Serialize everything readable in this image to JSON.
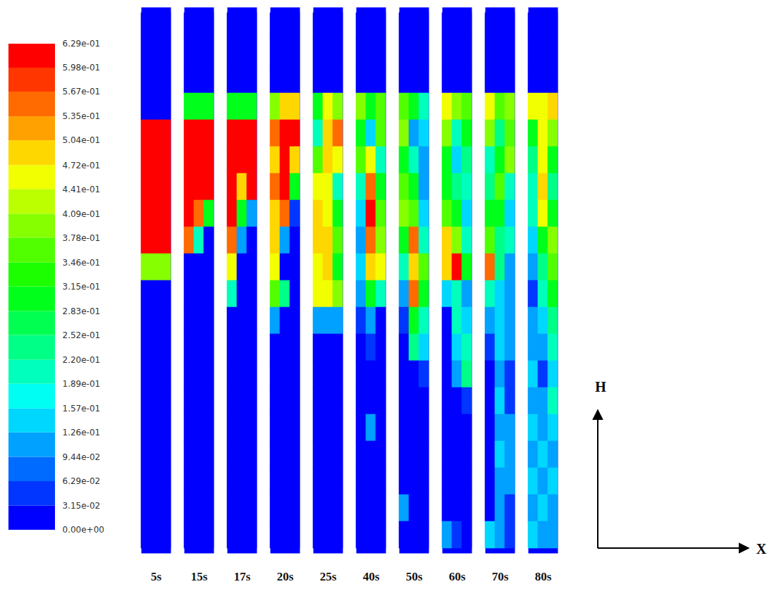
{
  "chart_data": {
    "type": "heatmap",
    "axis_labels": {
      "vertical": "H",
      "horizontal": "X"
    },
    "colorbar": {
      "range": [
        0,
        0.629
      ],
      "ticks": [
        {
          "value": 0,
          "label": "0.00e+00"
        },
        {
          "value": 0.0315,
          "label": "3.15e-02"
        },
        {
          "value": 0.0629,
          "label": "6.29e-02"
        },
        {
          "value": 0.0944,
          "label": "9.44e-02"
        },
        {
          "value": 0.126,
          "label": "1.26e-01"
        },
        {
          "value": 0.157,
          "label": "1.57e-01"
        },
        {
          "value": 0.189,
          "label": "1.89e-01"
        },
        {
          "value": 0.22,
          "label": "2.20e-01"
        },
        {
          "value": 0.252,
          "label": "2.52e-01"
        },
        {
          "value": 0.283,
          "label": "2.83e-01"
        },
        {
          "value": 0.315,
          "label": "3.15e-01"
        },
        {
          "value": 0.346,
          "label": "3.46e-01"
        },
        {
          "value": 0.378,
          "label": "3.78e-01"
        },
        {
          "value": 0.409,
          "label": "4.09e-01"
        },
        {
          "value": 0.441,
          "label": "4.41e-01"
        },
        {
          "value": 0.472,
          "label": "4.72e-01"
        },
        {
          "value": 0.504,
          "label": "5.04e-01"
        },
        {
          "value": 0.535,
          "label": "5.35e-01"
        },
        {
          "value": 0.567,
          "label": "5.67e-01"
        },
        {
          "value": 0.598,
          "label": "5.98e-01"
        },
        {
          "value": 0.629,
          "label": "6.29e-01"
        }
      ]
    },
    "panels": [
      {
        "label": "5s",
        "cells": [
          [
            0,
            0,
            0
          ],
          [
            0,
            0,
            0
          ],
          [
            0,
            0,
            0
          ],
          [
            0,
            0,
            0
          ],
          [
            0.62,
            0.62,
            0.62
          ],
          [
            0.62,
            0.62,
            0.62
          ],
          [
            0.62,
            0.62,
            0.62
          ],
          [
            0.62,
            0.62,
            0.62
          ],
          [
            0.62,
            0.62,
            0.62
          ],
          [
            0.4,
            0.4,
            0.4
          ],
          [
            0,
            0,
            0
          ],
          [
            0,
            0,
            0
          ],
          [
            0,
            0,
            0
          ],
          [
            0,
            0,
            0
          ],
          [
            0,
            0,
            0
          ],
          [
            0,
            0,
            0
          ],
          [
            0,
            0,
            0
          ],
          [
            0,
            0,
            0
          ],
          [
            0,
            0,
            0
          ],
          [
            0,
            0,
            0
          ]
        ]
      },
      {
        "label": "15s",
        "cells": [
          [
            0,
            0,
            0
          ],
          [
            0,
            0,
            0
          ],
          [
            0,
            0,
            0
          ],
          [
            0.3,
            0.3,
            0.3
          ],
          [
            0.62,
            0.62,
            0.62
          ],
          [
            0.62,
            0.62,
            0.62
          ],
          [
            0.62,
            0.62,
            0.62
          ],
          [
            0.62,
            0.55,
            0.3
          ],
          [
            0.55,
            0.2,
            0
          ],
          [
            0,
            0,
            0
          ],
          [
            0,
            0,
            0
          ],
          [
            0,
            0,
            0
          ],
          [
            0,
            0,
            0
          ],
          [
            0,
            0,
            0
          ],
          [
            0,
            0,
            0
          ],
          [
            0,
            0,
            0
          ],
          [
            0,
            0,
            0
          ],
          [
            0,
            0,
            0
          ],
          [
            0,
            0,
            0
          ],
          [
            0,
            0,
            0
          ]
        ]
      },
      {
        "label": "17s",
        "cells": [
          [
            0,
            0,
            0
          ],
          [
            0,
            0,
            0
          ],
          [
            0,
            0,
            0
          ],
          [
            0.3,
            0.3,
            0.3
          ],
          [
            0.62,
            0.62,
            0.62
          ],
          [
            0.62,
            0.62,
            0.62
          ],
          [
            0.62,
            0.5,
            0.62
          ],
          [
            0.6,
            0.3,
            0.1
          ],
          [
            0.55,
            0.1,
            0
          ],
          [
            0.45,
            0,
            0
          ],
          [
            0.2,
            0,
            0
          ],
          [
            0,
            0,
            0
          ],
          [
            0,
            0,
            0
          ],
          [
            0,
            0,
            0
          ],
          [
            0,
            0,
            0
          ],
          [
            0,
            0,
            0
          ],
          [
            0,
            0,
            0
          ],
          [
            0,
            0,
            0
          ],
          [
            0,
            0,
            0
          ],
          [
            0,
            0,
            0
          ]
        ]
      },
      {
        "label": "20s",
        "cells": [
          [
            0,
            0,
            0
          ],
          [
            0,
            0,
            0
          ],
          [
            0,
            0,
            0
          ],
          [
            0.4,
            0.5,
            0.5
          ],
          [
            0.55,
            0.6,
            0.62
          ],
          [
            0.5,
            0.6,
            0.5
          ],
          [
            0.55,
            0.62,
            0.3
          ],
          [
            0.5,
            0.55,
            0.05
          ],
          [
            0.5,
            0.1,
            0
          ],
          [
            0.45,
            0,
            0
          ],
          [
            0.35,
            0.25,
            0
          ],
          [
            0.1,
            0,
            0
          ],
          [
            0,
            0,
            0
          ],
          [
            0,
            0,
            0
          ],
          [
            0,
            0,
            0
          ],
          [
            0,
            0,
            0
          ],
          [
            0,
            0,
            0
          ],
          [
            0,
            0,
            0
          ],
          [
            0,
            0,
            0
          ],
          [
            0,
            0,
            0
          ]
        ]
      },
      {
        "label": "25s",
        "cells": [
          [
            0,
            0,
            0
          ],
          [
            0,
            0,
            0
          ],
          [
            0,
            0,
            0
          ],
          [
            0.3,
            0.45,
            0.4
          ],
          [
            0.2,
            0.5,
            0.55
          ],
          [
            0.35,
            0.5,
            0.45
          ],
          [
            0.45,
            0.45,
            0.2
          ],
          [
            0.5,
            0.45,
            0.3
          ],
          [
            0.5,
            0.5,
            0.35
          ],
          [
            0.45,
            0.5,
            0.3
          ],
          [
            0.45,
            0.45,
            0.4
          ],
          [
            0.1,
            0.1,
            0.1
          ],
          [
            0,
            0,
            0
          ],
          [
            0,
            0,
            0
          ],
          [
            0,
            0,
            0
          ],
          [
            0,
            0,
            0
          ],
          [
            0,
            0,
            0
          ],
          [
            0,
            0,
            0
          ],
          [
            0,
            0,
            0
          ],
          [
            0,
            0,
            0
          ]
        ]
      },
      {
        "label": "40s",
        "cells": [
          [
            0,
            0,
            0
          ],
          [
            0,
            0,
            0
          ],
          [
            0,
            0,
            0
          ],
          [
            0.4,
            0.3,
            0.35
          ],
          [
            0.3,
            0.15,
            0.35
          ],
          [
            0.35,
            0.45,
            0.2
          ],
          [
            0.2,
            0.55,
            0.3
          ],
          [
            0.15,
            0.6,
            0.35
          ],
          [
            0.1,
            0.55,
            0.4
          ],
          [
            0.15,
            0.5,
            0.45
          ],
          [
            0.1,
            0.3,
            0.2
          ],
          [
            0.05,
            0.1,
            0
          ],
          [
            0,
            0.05,
            0
          ],
          [
            0,
            0,
            0
          ],
          [
            0,
            0,
            0
          ],
          [
            0,
            0.1,
            0
          ],
          [
            0,
            0,
            0
          ],
          [
            0,
            0,
            0
          ],
          [
            0,
            0,
            0
          ],
          [
            0,
            0,
            0
          ]
        ]
      },
      {
        "label": "50s",
        "cells": [
          [
            0,
            0,
            0
          ],
          [
            0,
            0,
            0
          ],
          [
            0,
            0,
            0
          ],
          [
            0.35,
            0.3,
            0.2
          ],
          [
            0.4,
            0.1,
            0.15
          ],
          [
            0.3,
            0.2,
            0.1
          ],
          [
            0.35,
            0.3,
            0.1
          ],
          [
            0.4,
            0.35,
            0.15
          ],
          [
            0.3,
            0.55,
            0.2
          ],
          [
            0.2,
            0.5,
            0.35
          ],
          [
            0.1,
            0.55,
            0.3
          ],
          [
            0.05,
            0.3,
            0.2
          ],
          [
            0,
            0.25,
            0.15
          ],
          [
            0,
            0,
            0.05
          ],
          [
            0,
            0,
            0
          ],
          [
            0,
            0,
            0
          ],
          [
            0,
            0,
            0
          ],
          [
            0,
            0,
            0
          ],
          [
            0.1,
            0,
            0
          ],
          [
            0,
            0,
            0
          ]
        ]
      },
      {
        "label": "60s",
        "cells": [
          [
            0,
            0,
            0
          ],
          [
            0,
            0,
            0
          ],
          [
            0,
            0,
            0
          ],
          [
            0.45,
            0.4,
            0.35
          ],
          [
            0.4,
            0.2,
            0.3
          ],
          [
            0.3,
            0.15,
            0.25
          ],
          [
            0.3,
            0.25,
            0.2
          ],
          [
            0.35,
            0.3,
            0.15
          ],
          [
            0.5,
            0.4,
            0.2
          ],
          [
            0.5,
            0.6,
            0.3
          ],
          [
            0.15,
            0.2,
            0.1
          ],
          [
            0,
            0.2,
            0.15
          ],
          [
            0,
            0.15,
            0.2
          ],
          [
            0,
            0.1,
            0.25
          ],
          [
            0,
            0,
            0.05
          ],
          [
            0,
            0,
            0
          ],
          [
            0,
            0,
            0
          ],
          [
            0,
            0,
            0
          ],
          [
            0,
            0,
            0
          ],
          [
            0.1,
            0.05,
            0
          ]
        ]
      },
      {
        "label": "70s",
        "cells": [
          [
            0,
            0,
            0
          ],
          [
            0,
            0,
            0
          ],
          [
            0,
            0,
            0
          ],
          [
            0.45,
            0.35,
            0.4
          ],
          [
            0.4,
            0.25,
            0.35
          ],
          [
            0.2,
            0.3,
            0.4
          ],
          [
            0.25,
            0.35,
            0.2
          ],
          [
            0.3,
            0.3,
            0.15
          ],
          [
            0.35,
            0.25,
            0.2
          ],
          [
            0.55,
            0.25,
            0.1
          ],
          [
            0.2,
            0.15,
            0.1
          ],
          [
            0.1,
            0.15,
            0.1
          ],
          [
            0.05,
            0.15,
            0.1
          ],
          [
            0,
            0.1,
            0.05
          ],
          [
            0,
            0.15,
            0.05
          ],
          [
            0,
            0.1,
            0.1
          ],
          [
            0,
            0.15,
            0.1
          ],
          [
            0,
            0.1,
            0.1
          ],
          [
            0,
            0.1,
            0.05
          ],
          [
            0.15,
            0.1,
            0.05
          ]
        ]
      },
      {
        "label": "80s",
        "cells": [
          [
            0,
            0,
            0
          ],
          [
            0,
            0,
            0
          ],
          [
            0,
            0,
            0
          ],
          [
            0.45,
            0.45,
            0.5
          ],
          [
            0.3,
            0.45,
            0.4
          ],
          [
            0.25,
            0.45,
            0.3
          ],
          [
            0.2,
            0.5,
            0.25
          ],
          [
            0.2,
            0.45,
            0.3
          ],
          [
            0.15,
            0.3,
            0.4
          ],
          [
            0.1,
            0.25,
            0.35
          ],
          [
            0.05,
            0.2,
            0.3
          ],
          [
            0.1,
            0.15,
            0.25
          ],
          [
            0.1,
            0.1,
            0.2
          ],
          [
            0.15,
            0.05,
            0.15
          ],
          [
            0.1,
            0.1,
            0.2
          ],
          [
            0.15,
            0.1,
            0.15
          ],
          [
            0.1,
            0.15,
            0.1
          ],
          [
            0.15,
            0.1,
            0.15
          ],
          [
            0.1,
            0.15,
            0.1
          ],
          [
            0.15,
            0.1,
            0.1
          ]
        ]
      }
    ]
  }
}
